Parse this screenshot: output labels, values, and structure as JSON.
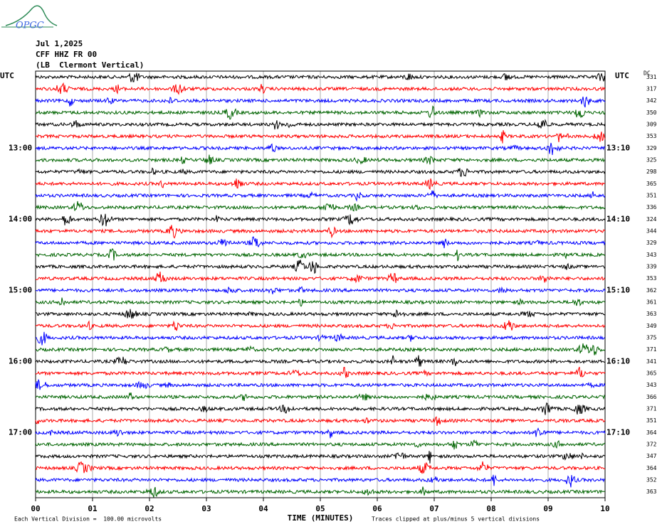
{
  "header": {
    "logo": "OPGC",
    "date": "Jul 1,2025",
    "station": "CFF HHZ FR 00",
    "location": "(LB  Clermont Vertical)"
  },
  "chart_data": {
    "type": "helicorder",
    "x_label": "TIME (MINUTES)",
    "xlim": [
      0,
      10
    ],
    "xticks": [
      {
        "value": 0,
        "label": "00"
      },
      {
        "value": 1,
        "label": "01"
      },
      {
        "value": 2,
        "label": "02"
      },
      {
        "value": 3,
        "label": "03"
      },
      {
        "value": 4,
        "label": "04"
      },
      {
        "value": 5,
        "label": "05"
      },
      {
        "value": 6,
        "label": "06"
      },
      {
        "value": 7,
        "label": "07"
      },
      {
        "value": 8,
        "label": "08"
      },
      {
        "value": 9,
        "label": "09"
      },
      10
    ],
    "grid": true,
    "left_axis_label": "UTC",
    "right_axis_label": "UTC",
    "dc_label": "DC",
    "trace_colors": [
      "#000000",
      "#ff0000",
      "#0000ff",
      "#006400"
    ],
    "left_labels": [
      null,
      null,
      null,
      null,
      null,
      null,
      "13:00",
      null,
      null,
      null,
      null,
      null,
      "14:00",
      null,
      null,
      null,
      null,
      null,
      "15:00",
      null,
      null,
      null,
      null,
      null,
      "16:00",
      null,
      null,
      null,
      null,
      null,
      "17:00",
      null,
      null,
      null,
      null,
      null
    ],
    "right_labels": [
      null,
      null,
      null,
      null,
      null,
      null,
      "13:10",
      null,
      null,
      null,
      null,
      null,
      "14:10",
      null,
      null,
      null,
      null,
      null,
      "15:10",
      null,
      null,
      null,
      null,
      null,
      "16:10",
      null,
      null,
      null,
      null,
      null,
      "17:10",
      null,
      null,
      null,
      null,
      null
    ],
    "dc": [
      331,
      317,
      342,
      350,
      309,
      353,
      329,
      325,
      298,
      365,
      351,
      336,
      324,
      344,
      329,
      343,
      339,
      353,
      362,
      361,
      363,
      349,
      375,
      371,
      341,
      365,
      343,
      366,
      371,
      351,
      364,
      372,
      347,
      364,
      352,
      363
    ],
    "scale_note": "Each Vertical Division =  100.00 microvolts",
    "clip_note": "Traces clipped at plus/minus 5 vertical divisions"
  }
}
